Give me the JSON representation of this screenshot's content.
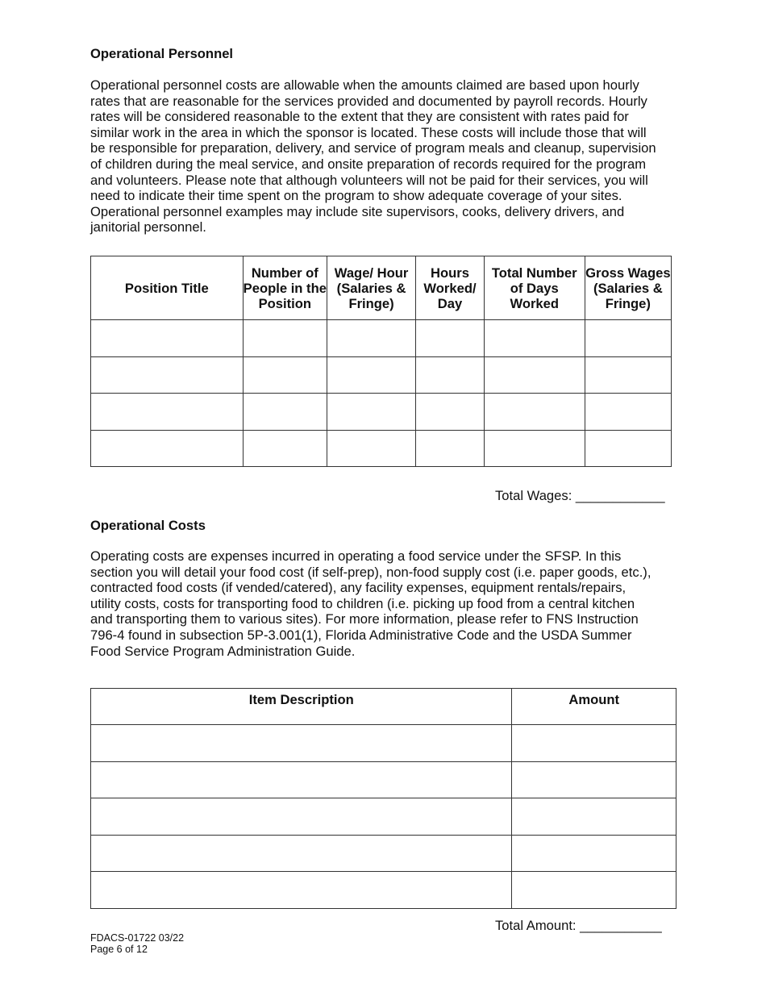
{
  "personnel": {
    "heading": "Operational Personnel",
    "paragraph": [
      "Operational personnel costs are allowable when the amounts claimed are based upon hourly",
      "rates that are reasonable for the services provided and documented by payroll records. Hourly",
      "rates will be considered reasonable to the extent that they are consistent with rates paid for",
      "similar work in the area in which the sponsor is located. These costs will include those that will",
      "be responsible for preparation, delivery, and service of program meals and cleanup, supervision",
      "of children during the meal service, and onsite preparation of records required for the program",
      "and volunteers. Please note that although volunteers will not be paid for their services, you will",
      "need to indicate their time spent on the program to show adequate coverage of your sites.",
      "Operational personnel examples may include site supervisors, cooks, delivery drivers, and",
      "janitorial personnel."
    ],
    "columns": [
      "Position Title",
      "Number of People in the Position",
      "Wage/ Hour (Salaries & Fringe)",
      "Hours Worked/ Day",
      "Total Number of Days Worked",
      "Gross Wages (Salaries & Fringe)"
    ],
    "total_label": "Total Wages: ____________"
  },
  "costs": {
    "heading": "Operational Costs",
    "paragraph": [
      "Operating costs are expenses incurred in operating a food service under the SFSP. In this",
      "section you will detail your food cost (if self-prep), non-food supply cost (i.e. paper goods, etc.),",
      "contracted food costs (if vended/catered), any facility expenses, equipment rentals/repairs,",
      "utility costs, costs for transporting food to children (i.e. picking up food from a central kitchen",
      "and transporting them to various sites). For more information, please refer to FNS Instruction",
      "796-4 found in subsection 5P-3.001(1), Florida Administrative Code and the USDA Summer",
      "Food Service Program Administration Guide."
    ],
    "columns": [
      "Item Description",
      "Amount"
    ],
    "total_label": "Total Amount: ___________"
  },
  "footer": {
    "form_id": "FDACS-01722 03/22",
    "page": "Page 6 of 12"
  }
}
